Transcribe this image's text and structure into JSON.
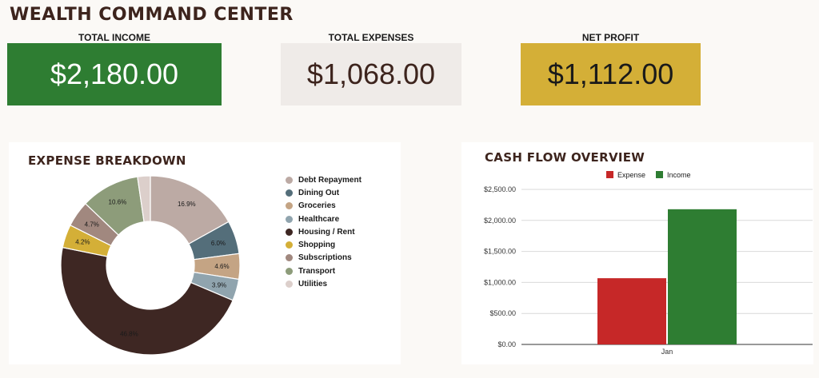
{
  "title": "WEALTH COMMAND CENTER",
  "kpis": [
    {
      "label": "TOTAL INCOME",
      "value": "$2,180.00",
      "bg": "#2e7d32",
      "fg": "#ffffff"
    },
    {
      "label": "TOTAL EXPENSES",
      "value": "$1,068.00",
      "bg": "#efebe8",
      "fg": "#3d241d"
    },
    {
      "label": "NET PROFIT",
      "value": "$1,112.00",
      "bg": "#d4af37",
      "fg": "#1a1a1a"
    }
  ],
  "chart_data": [
    {
      "type": "pie",
      "title": "EXPENSE BREAKDOWN",
      "donut": true,
      "legend": "right",
      "categories": [
        "Debt Repayment",
        "Dining Out",
        "Groceries",
        "Healthcare",
        "Housing / Rent",
        "Shopping",
        "Subscriptions",
        "Transport",
        "Utilities"
      ],
      "values": [
        16.9,
        6.0,
        4.6,
        3.9,
        46.8,
        4.2,
        4.7,
        10.6,
        2.3
      ],
      "labels": [
        "16.9%",
        "6.0%",
        "4.6%",
        "3.9%",
        "46.8%",
        "4.2%",
        "4.7%",
        "10.6%",
        ""
      ],
      "colors": [
        "#bcaaa4",
        "#546e7a",
        "#c4a484",
        "#90a4ae",
        "#3e2723",
        "#d4af37",
        "#a1887f",
        "#8d9c7a",
        "#dccfcb"
      ]
    },
    {
      "type": "bar",
      "title": "CASH FLOW OVERVIEW",
      "legend": "top",
      "categories": [
        "Jan"
      ],
      "series": [
        {
          "name": "Expense",
          "values": [
            1068
          ],
          "color": "#c62828"
        },
        {
          "name": "Income",
          "values": [
            2180
          ],
          "color": "#2e7d32"
        }
      ],
      "ylim": [
        0,
        2500
      ],
      "yticks": [
        "$0.00",
        "$500.00",
        "$1,000.00",
        "$1,500.00",
        "$2,000.00",
        "$2,500.00"
      ],
      "grid": true
    }
  ]
}
